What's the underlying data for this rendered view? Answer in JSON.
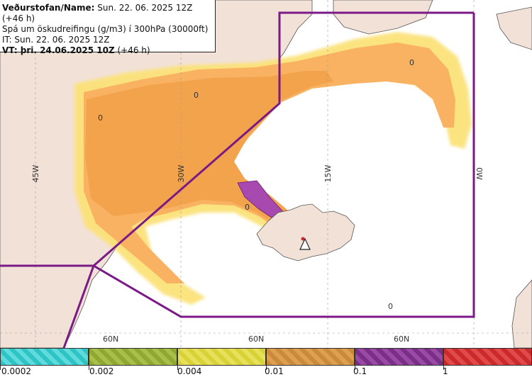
{
  "info": {
    "line1_label": "Veðurstofan/Name:",
    "line1_value": " Sun. 22. 06. 2025 12Z (+46 h)",
    "line2": "Spá um öskudreifingu (g/m3) í 300hPa (30000ft)",
    "line3": "IT: Sun. 22. 06. 2025 12Z",
    "line4_label": "VT:",
    "line4_date": " þri. 24.06.2025 10Z",
    "line4_suffix": " (+46 h)"
  },
  "map": {
    "longitude_labels": [
      "45W",
      "30W",
      "15W",
      "0W"
    ],
    "latitude_labels": [
      "60N",
      "60N",
      "60N"
    ],
    "concentration_markers": [
      "0",
      "0",
      "0",
      "0",
      "0"
    ],
    "volcano_icon": "volcano-triangle-icon"
  },
  "legend": {
    "tick_labels": [
      "0.0002",
      "0.002",
      "0.004",
      "0.01",
      "0.1",
      "1"
    ],
    "colors": [
      "#2ec4c6",
      "#8fa832",
      "#d8d236",
      "#c98a3a",
      "#7a2f86",
      "#cc2a2a"
    ]
  },
  "colors": {
    "land": "#f2e1d7",
    "ash_low": "#fbe27a",
    "ash_mid": "#f9b261",
    "ash_high": "#f3a34c",
    "ash_top": "#a64ab0",
    "boundary": "#7b1a86"
  }
}
